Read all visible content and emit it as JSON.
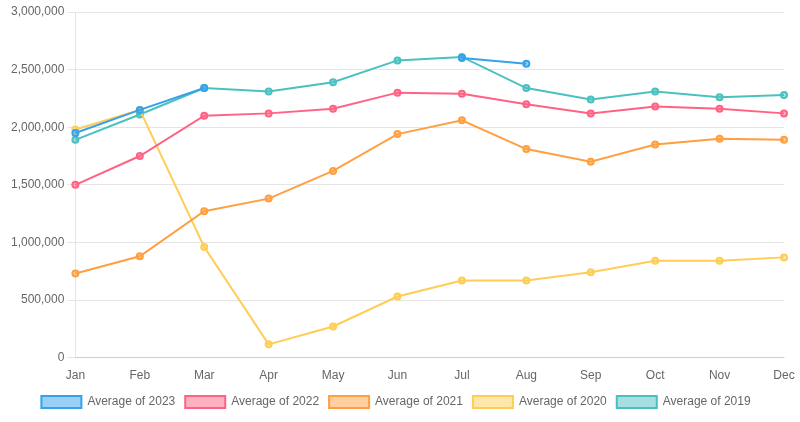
{
  "chart_data": {
    "type": "line",
    "categories": [
      "Jan",
      "Feb",
      "Mar",
      "Apr",
      "May",
      "Jun",
      "Jul",
      "Aug",
      "Sep",
      "Oct",
      "Nov",
      "Dec"
    ],
    "series": [
      {
        "name": "Average of 2023",
        "values": [
          1950000,
          2150000,
          2340000,
          null,
          null,
          null,
          2600000,
          2550000,
          null,
          null,
          null,
          null
        ]
      },
      {
        "name": "Average of 2022",
        "values": [
          1500000,
          1750000,
          2100000,
          2120000,
          2160000,
          2300000,
          2290000,
          2200000,
          2120000,
          2180000,
          2160000,
          2120000
        ]
      },
      {
        "name": "Average of 2021",
        "values": [
          730000,
          880000,
          1270000,
          1380000,
          1620000,
          1940000,
          2060000,
          1810000,
          1700000,
          1850000,
          1900000,
          1890000
        ]
      },
      {
        "name": "Average of 2020",
        "values": [
          1980000,
          2150000,
          960000,
          115000,
          270000,
          530000,
          670000,
          670000,
          740000,
          840000,
          840000,
          870000
        ]
      },
      {
        "name": "Average of 2019",
        "values": [
          1890000,
          2110000,
          2340000,
          2310000,
          2390000,
          2580000,
          2610000,
          2340000,
          2240000,
          2310000,
          2260000,
          2280000
        ]
      }
    ],
    "ylim": [
      0,
      3000000
    ],
    "yticks": [
      0,
      {
        "value": 500000,
        "label": "500,000"
      },
      {
        "value": 1000000,
        "label": "1,000,000"
      },
      {
        "value": 1500000,
        "label": "1,500,000"
      },
      {
        "value": 2000000,
        "label": "2,000,000"
      },
      {
        "value": 2500000,
        "label": "2,500,000"
      },
      {
        "value": 3000000,
        "label": "3,000,000"
      }
    ],
    "grid": true,
    "legend": "bottom",
    "marker": "circle"
  }
}
